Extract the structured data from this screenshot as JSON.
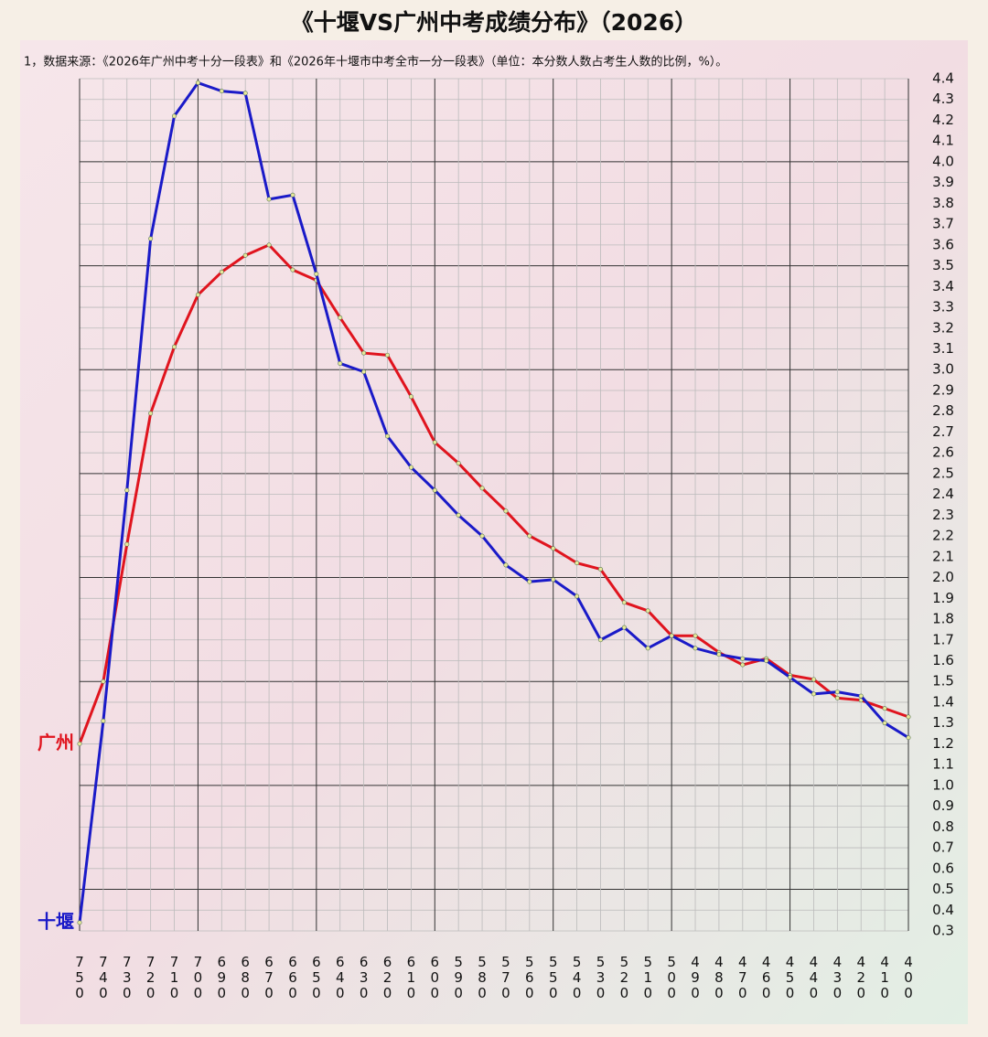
{
  "chart_data": {
    "type": "line",
    "title": "《十堰VS广州中考成绩分布》（2026）",
    "subtitle": "1，数据来源：《2026年广州中考十分一段表》和《2026年十堰市中考全市一分一段表》（单位：本分数人数占考生人数的比例，%）。",
    "categories": [
      "750",
      "740",
      "730",
      "720",
      "710",
      "700",
      "690",
      "680",
      "670",
      "660",
      "650",
      "640",
      "630",
      "620",
      "610",
      "600",
      "590",
      "580",
      "570",
      "560",
      "550",
      "540",
      "530",
      "520",
      "510",
      "500",
      "490",
      "480",
      "470",
      "460",
      "450",
      "440",
      "430",
      "420",
      "410",
      "400"
    ],
    "series": [
      {
        "name": "广州",
        "color": "#e0141e",
        "values": [
          1.2,
          1.5,
          2.16,
          2.79,
          3.11,
          3.36,
          3.47,
          3.55,
          3.6,
          3.48,
          3.43,
          3.25,
          3.08,
          3.07,
          2.87,
          2.65,
          2.55,
          2.43,
          2.32,
          2.2,
          2.14,
          2.07,
          2.04,
          1.88,
          1.84,
          1.72,
          1.72,
          1.64,
          1.58,
          1.61,
          1.53,
          1.51,
          1.42,
          1.41,
          1.37,
          1.33
        ]
      },
      {
        "name": "十堰",
        "color": "#1a1ac8",
        "values": [
          0.34,
          1.31,
          2.42,
          3.63,
          4.22,
          4.38,
          4.34,
          4.33,
          3.82,
          3.84,
          3.46,
          3.03,
          2.99,
          2.68,
          2.53,
          2.42,
          2.3,
          2.2,
          2.06,
          1.98,
          1.99,
          1.91,
          1.7,
          1.76,
          1.66,
          1.72,
          1.66,
          1.63,
          1.61,
          1.6,
          1.52,
          1.44,
          1.45,
          1.43,
          1.3,
          1.23
        ]
      }
    ],
    "ylim": [
      0.3,
      4.4
    ],
    "yticks": [
      0.3,
      0.4,
      0.5,
      0.6,
      0.7,
      0.8,
      0.9,
      {
        "value": 1,
        "label": "1.0"
      },
      1.1,
      1.2,
      1.3,
      1.4,
      1.5,
      1.6,
      1.7,
      1.8,
      1.9,
      {
        "value": 2,
        "label": "2.0"
      },
      2.1,
      2.2,
      2.3,
      2.4,
      2.5,
      2.6,
      2.7,
      2.8,
      2.9,
      {
        "value": 3,
        "label": "3.0"
      },
      3.1,
      3.2,
      3.3,
      3.4,
      3.5,
      3.6,
      3.7,
      3.8,
      3.9,
      {
        "value": 4,
        "label": "4.0"
      },
      4.1,
      4.2,
      4.3,
      4.4
    ],
    "y_axis_side": "right",
    "grid": true
  }
}
